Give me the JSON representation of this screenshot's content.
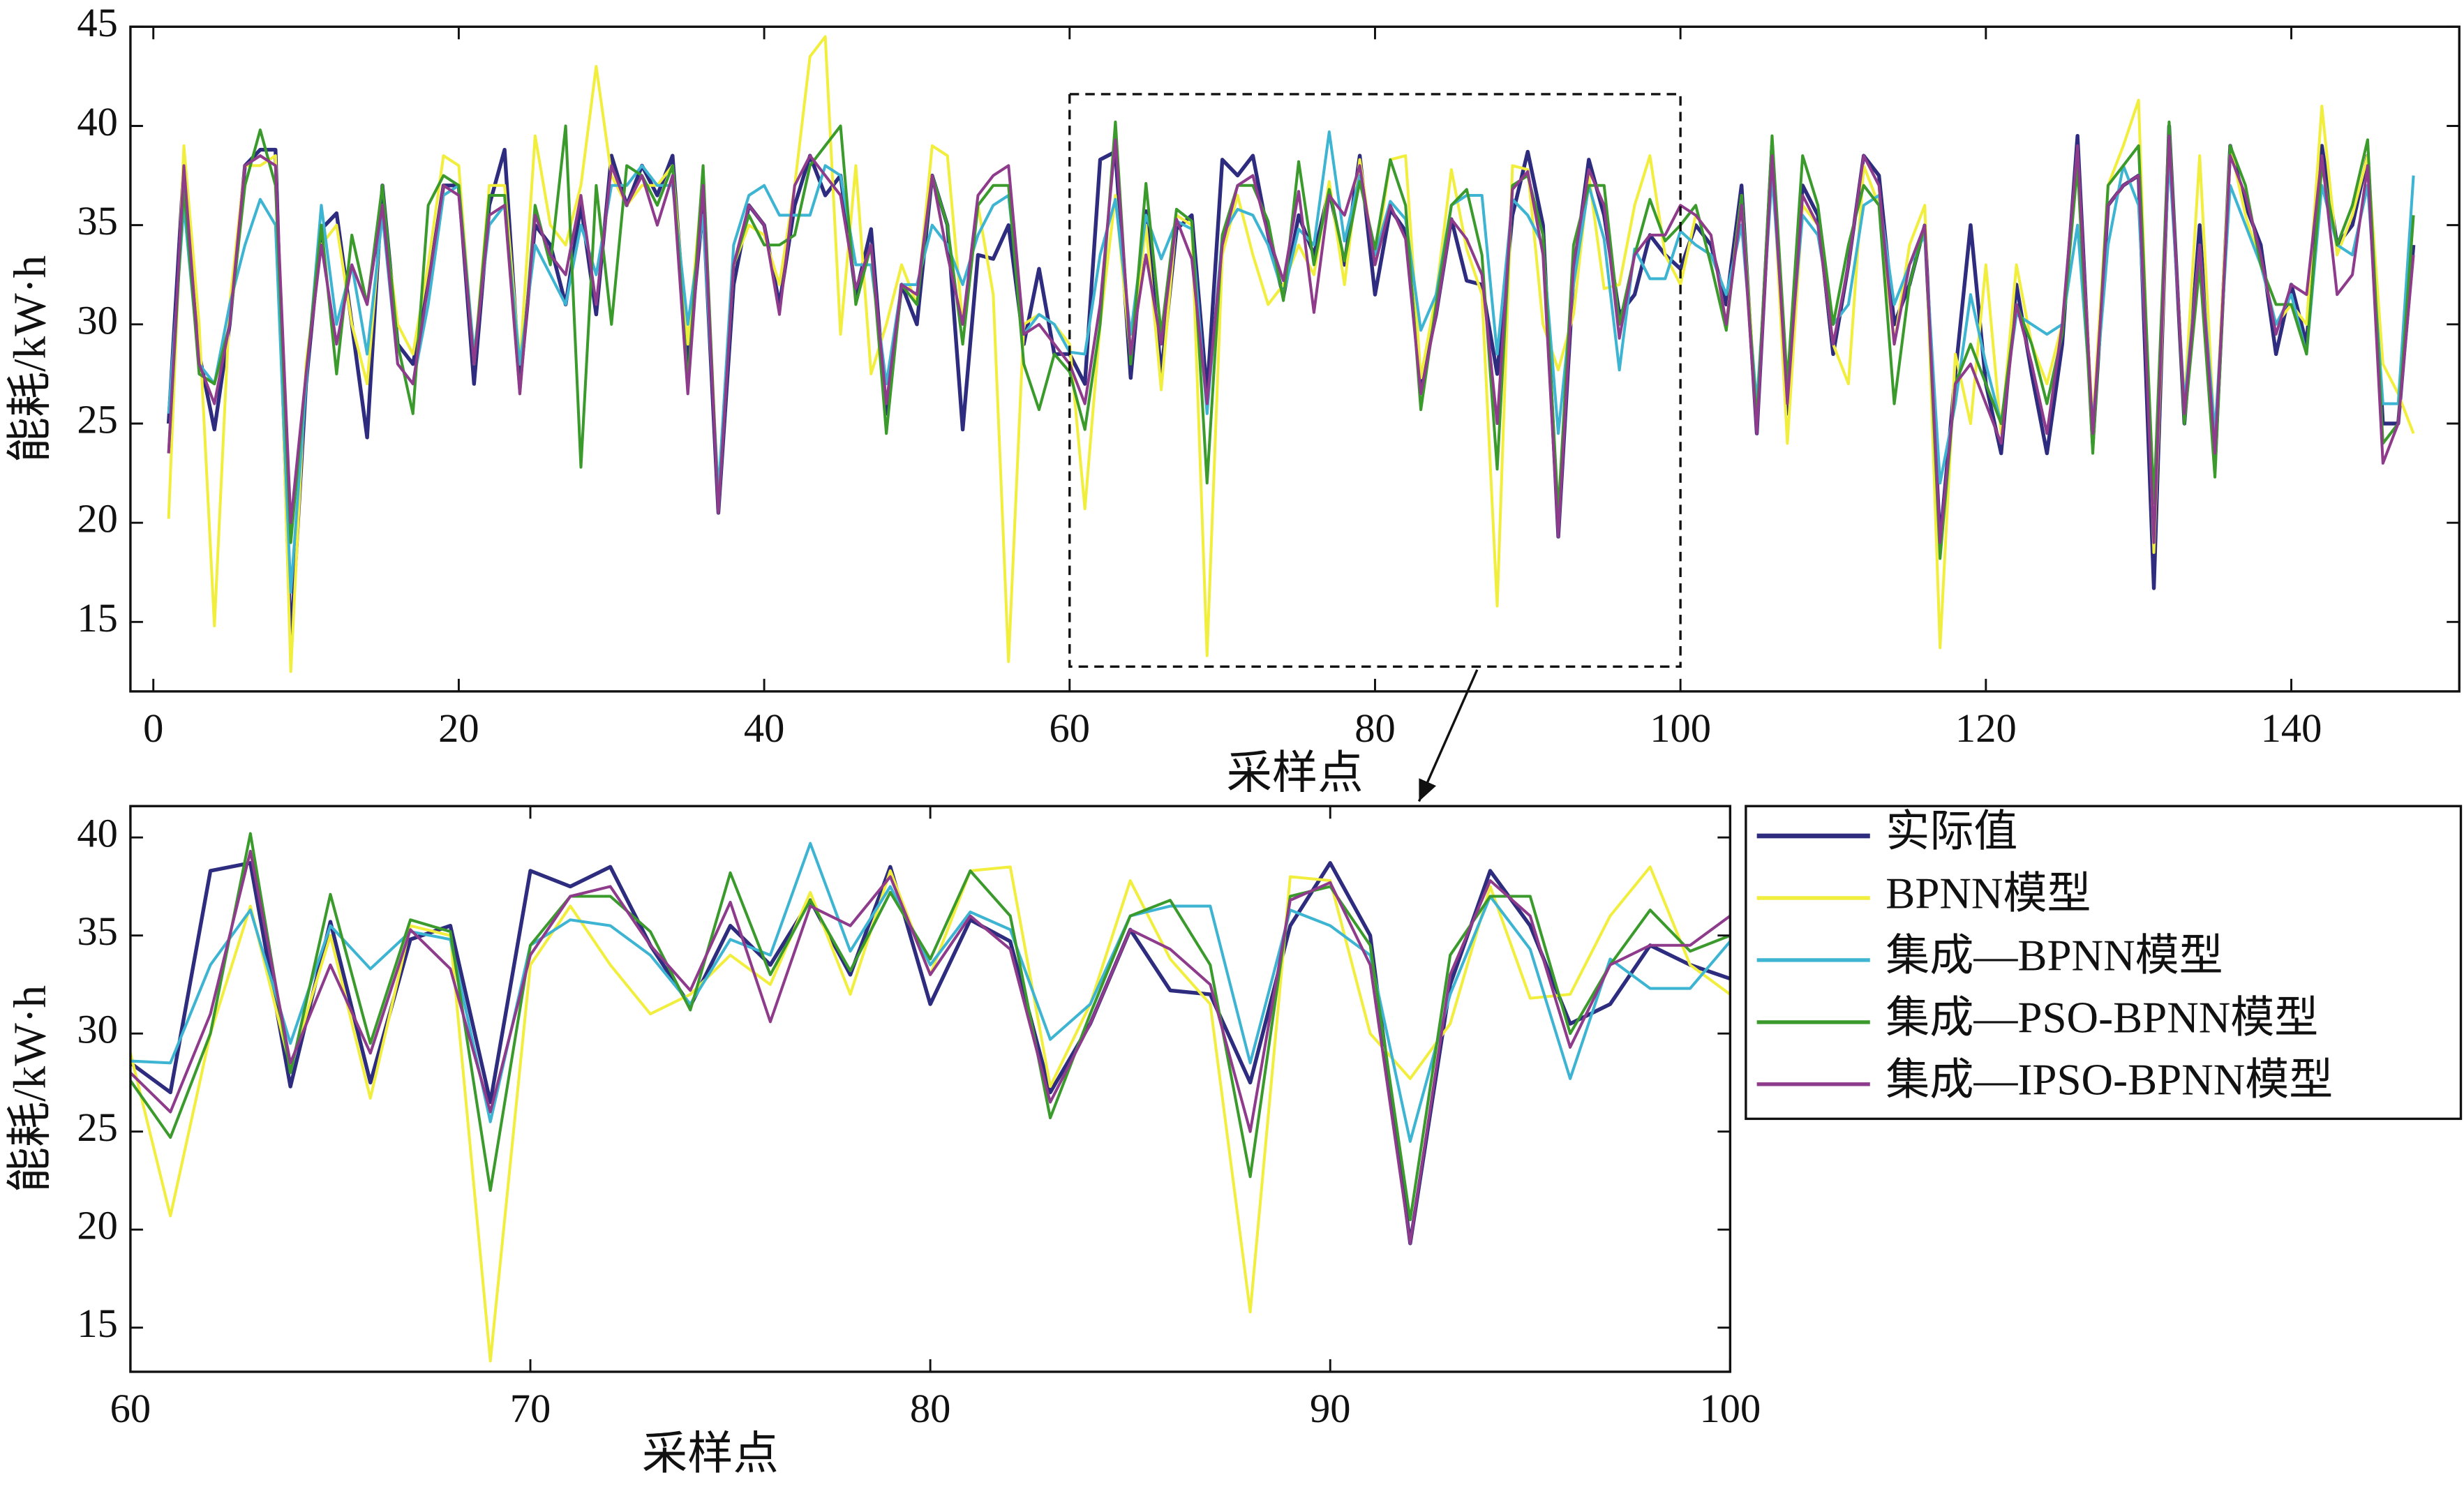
{
  "chart_data": [
    {
      "type": "line",
      "xlabel": "采样点",
      "ylabel": "能耗/kW·h",
      "xlim": [
        -1.5,
        151
      ],
      "ylim": [
        11.5,
        45
      ],
      "xticks": [
        0,
        20,
        40,
        60,
        80,
        100,
        120,
        140
      ],
      "yticks": [
        15,
        20,
        25,
        30,
        35,
        40,
        45
      ],
      "x": [
        1,
        2,
        3,
        4,
        5,
        6,
        7,
        8,
        9,
        10,
        11,
        12,
        13,
        14,
        15,
        16,
        17,
        18,
        19,
        20,
        21,
        22,
        23,
        24,
        25,
        26,
        27,
        28,
        29,
        30,
        31,
        32,
        33,
        34,
        35,
        36,
        37,
        38,
        39,
        40,
        41,
        42,
        43,
        44,
        45,
        46,
        47,
        48,
        49,
        50,
        51,
        52,
        53,
        54,
        55,
        56,
        57,
        58,
        59,
        60,
        61,
        62,
        63,
        64,
        65,
        66,
        67,
        68,
        69,
        70,
        71,
        72,
        73,
        74,
        75,
        76,
        77,
        78,
        79,
        80,
        81,
        82,
        83,
        84,
        85,
        86,
        87,
        88,
        89,
        90,
        91,
        92,
        93,
        94,
        95,
        96,
        97,
        98,
        99,
        100,
        101,
        102,
        103,
        104,
        105,
        106,
        107,
        108,
        109,
        110,
        111,
        112,
        113,
        114,
        115,
        116,
        117,
        118,
        119,
        120,
        121,
        122,
        123,
        124,
        125,
        126,
        127,
        128,
        129,
        130,
        131,
        132,
        133,
        134,
        135,
        136,
        137,
        138,
        139,
        140,
        141,
        142,
        143,
        144,
        145,
        146,
        147,
        148
      ],
      "series": [
        {
          "name": "实际值",
          "color": "#2e2c7e",
          "values": [
            25,
            38,
            28.5,
            24.7,
            30,
            38,
            38.8,
            38.8,
            13.8,
            27,
            34.8,
            35.6,
            30,
            24.3,
            37,
            29,
            28,
            32,
            37,
            37,
            27,
            36,
            38.8,
            27,
            35,
            34,
            31,
            36,
            30.5,
            38.5,
            36,
            38,
            36.5,
            38.5,
            28,
            36,
            20.5,
            32,
            36,
            35,
            31,
            36,
            38.5,
            36.5,
            37.5,
            31.5,
            34.8,
            25.5,
            32,
            30,
            37.5,
            35,
            24.7,
            33.5,
            33.3,
            35,
            29,
            32.8,
            28.5,
            28.5,
            27,
            38.3,
            38.7,
            27.3,
            35.7,
            27.5,
            34.8,
            35.5,
            26.5,
            38.3,
            37.5,
            38.5,
            34.5,
            31.4,
            35.5,
            33.5,
            36.8,
            33,
            38.5,
            31.5,
            35.8,
            34.7,
            27,
            30.5,
            35.3,
            32.2,
            32,
            27.5,
            35.5,
            38.7,
            35,
            19.3,
            32.5,
            38.3,
            35.5,
            30.5,
            31.5,
            34.5,
            33.5,
            32.8,
            35,
            34,
            31,
            37,
            24.5,
            39,
            25.5,
            37,
            35.5,
            28.5,
            33,
            38.5,
            37.5,
            30,
            32,
            35,
            19,
            27.5,
            35,
            27,
            23.5,
            32,
            27.5,
            23.5,
            29,
            39.5,
            24,
            36,
            37,
            37.5,
            16.7,
            40,
            25,
            35,
            23,
            39,
            36,
            34,
            28.5,
            32,
            29,
            39,
            34,
            35,
            38.5,
            25,
            25,
            34
          ]
        },
        {
          "name": "BPNN模型",
          "color": "#f2ee3e",
          "values": [
            20.2,
            39,
            30,
            14.8,
            31,
            38,
            38,
            38.5,
            12.5,
            28,
            34,
            35,
            30,
            27,
            36,
            30,
            28.5,
            33,
            38.5,
            38,
            28,
            37,
            37,
            28,
            39.5,
            35,
            34,
            37,
            43,
            37.5,
            36,
            37,
            37,
            38,
            29,
            37.5,
            21,
            33,
            35,
            34.5,
            32,
            37,
            43.5,
            44.5,
            29.5,
            38,
            27.5,
            30,
            33,
            31,
            39,
            38.5,
            30,
            36,
            31.5,
            13,
            30,
            30.5,
            30,
            29,
            20.7,
            30,
            36.5,
            28.3,
            35,
            26.7,
            35.5,
            35,
            13.3,
            33.5,
            36.5,
            33.5,
            31,
            32,
            34,
            32.5,
            37.2,
            32,
            38.3,
            33,
            38.3,
            38.5,
            27.3,
            31.5,
            37.8,
            33.8,
            31.5,
            15.8,
            38,
            37.8,
            30,
            27.7,
            30.5,
            37.5,
            31.8,
            32,
            36,
            38.5,
            33.5,
            32,
            35.5,
            34.5,
            30,
            36.5,
            25.5,
            38.5,
            24,
            36,
            35,
            29,
            27,
            38,
            36,
            29,
            34,
            36,
            13.7,
            28.5,
            25,
            33,
            24.5,
            33,
            29,
            27,
            30,
            38.5,
            25,
            37,
            39,
            41.3,
            18.5,
            39,
            26,
            38.5,
            24,
            39,
            35.5,
            33,
            30,
            31,
            30,
            41,
            33.5,
            35.5,
            38.5,
            28,
            26.5,
            24.5
          ]
        },
        {
          "name": "集成—BPNN模型",
          "color": "#3cb4d2",
          "values": [
            25.5,
            36,
            28,
            27,
            31,
            34,
            36.3,
            35,
            16.5,
            27,
            36,
            30,
            33,
            28.5,
            35.5,
            28,
            27,
            31,
            36.5,
            37,
            28.5,
            35,
            36,
            28,
            34,
            32.5,
            31,
            35,
            32.5,
            37,
            37,
            38,
            37,
            37,
            30,
            35.5,
            21.5,
            34,
            36.5,
            37,
            35.5,
            35.5,
            35.5,
            38,
            37.5,
            33,
            33,
            27,
            32,
            32,
            35,
            34,
            32,
            34.5,
            36,
            36.5,
            29.5,
            30.5,
            30,
            28.6,
            28.5,
            33.5,
            36.3,
            29.5,
            35.5,
            33.3,
            35.2,
            34.8,
            25.5,
            34.5,
            35.8,
            35.5,
            34,
            31.5,
            34.8,
            34,
            39.7,
            34.2,
            37.5,
            33.5,
            36.2,
            35.3,
            29.7,
            31.5,
            36,
            36.5,
            36.5,
            28.5,
            36.3,
            35.5,
            34,
            24.5,
            32,
            37,
            34.3,
            27.7,
            33.8,
            32.3,
            32.3,
            34.7,
            34,
            33.5,
            31.5,
            35,
            26,
            37.5,
            27,
            35.5,
            34.5,
            30,
            31,
            36,
            36.5,
            31,
            33,
            34.5,
            22,
            26,
            31.5,
            28,
            25,
            30.5,
            30,
            29.5,
            30,
            35,
            25,
            34,
            38,
            36,
            21,
            38.5,
            26,
            34,
            24.5,
            37,
            35,
            33,
            30,
            31.5,
            28.5,
            37,
            34,
            33.5,
            37,
            26,
            26,
            37.5
          ]
        },
        {
          "name": "集成—PSO-BPNN模型",
          "color": "#3b9a2c",
          "values": [
            23.5,
            37,
            27.5,
            27,
            30,
            37,
            39.8,
            37,
            19,
            27.5,
            35,
            27.5,
            34.5,
            31,
            37,
            29,
            25.5,
            36,
            37.5,
            37,
            28,
            36.5,
            36.5,
            26.5,
            36,
            33,
            40,
            22.8,
            37,
            30,
            38,
            37.5,
            36,
            38,
            27,
            38,
            20.5,
            33,
            35.5,
            34,
            34,
            34.5,
            38,
            39,
            40,
            31,
            34,
            24.5,
            32,
            31,
            37.5,
            35,
            29,
            36,
            37,
            37,
            28,
            25.7,
            28.5,
            27.6,
            24.7,
            30,
            40.2,
            28,
            37.1,
            29.5,
            35.8,
            35.2,
            22,
            34.5,
            37,
            37,
            35.2,
            31.2,
            38.2,
            33,
            36.8,
            33.2,
            37.2,
            33.8,
            38.3,
            36,
            25.7,
            31,
            36,
            36.8,
            33.5,
            22.7,
            37,
            37.5,
            34.5,
            20.5,
            34,
            37,
            37,
            30,
            33.5,
            36.3,
            34.2,
            35,
            36,
            33,
            29.7,
            36.5,
            25,
            39.5,
            27,
            38.5,
            36,
            30,
            34,
            37,
            36,
            26,
            32,
            35,
            18.2,
            27,
            29,
            27,
            25,
            31,
            29,
            26,
            29.5,
            38,
            23.5,
            37,
            38,
            39,
            21,
            40.2,
            25,
            33,
            22.3,
            39,
            37,
            33,
            31,
            31,
            28.5,
            38,
            34,
            36,
            39.3,
            24,
            25,
            35.5
          ]
        },
        {
          "name": "集成—IPSO-BPNN模型",
          "color": "#8e3b8c",
          "values": [
            23.5,
            38,
            28,
            26,
            30,
            38,
            38.5,
            38,
            20,
            27.5,
            34,
            29,
            33,
            31,
            36,
            28,
            27,
            32,
            37,
            36.5,
            28,
            35.5,
            36,
            26.5,
            35.5,
            33.5,
            32.5,
            36.5,
            31,
            38,
            36,
            37.5,
            35,
            37.5,
            26.5,
            37,
            20.5,
            33,
            36,
            35,
            30.5,
            37,
            38.5,
            37.5,
            36.5,
            31.8,
            34,
            26,
            32,
            31.5,
            37.5,
            33.5,
            30,
            36.5,
            37.5,
            38,
            29.5,
            30,
            29,
            28,
            26,
            31,
            39.3,
            28.5,
            33.5,
            29,
            35.3,
            33.3,
            26,
            34,
            37,
            37.5,
            34.5,
            32.2,
            36.7,
            30.6,
            36.5,
            35.5,
            38,
            33,
            36,
            34.3,
            26.5,
            30.5,
            35.3,
            34.3,
            32.5,
            25,
            36.8,
            37.7,
            33.5,
            19.3,
            33,
            37.8,
            36,
            29.3,
            33.5,
            34.5,
            34.5,
            36,
            35.5,
            34.5,
            30,
            36,
            24.5,
            38.5,
            26,
            36.5,
            35,
            29,
            33,
            38.5,
            37,
            29,
            33,
            35,
            19,
            27,
            28,
            26,
            24,
            31,
            28,
            24.5,
            30,
            39,
            24.5,
            36,
            37,
            37.5,
            19,
            39.5,
            25.5,
            34,
            23.5,
            38.5,
            36.5,
            33.5,
            29.5,
            32,
            31.5,
            38.5,
            31.5,
            32.5,
            38,
            23,
            25,
            33.5
          ]
        }
      ]
    },
    {
      "type": "line",
      "xlabel": "采样点",
      "ylabel": "能耗/kW·h",
      "xlim": [
        60,
        100
      ],
      "ylim": [
        12.75,
        41.6
      ],
      "xticks": [
        60,
        70,
        80,
        90,
        100
      ],
      "yticks": [
        15,
        20,
        25,
        30,
        35,
        40
      ],
      "legend": "outside-right"
    }
  ]
}
